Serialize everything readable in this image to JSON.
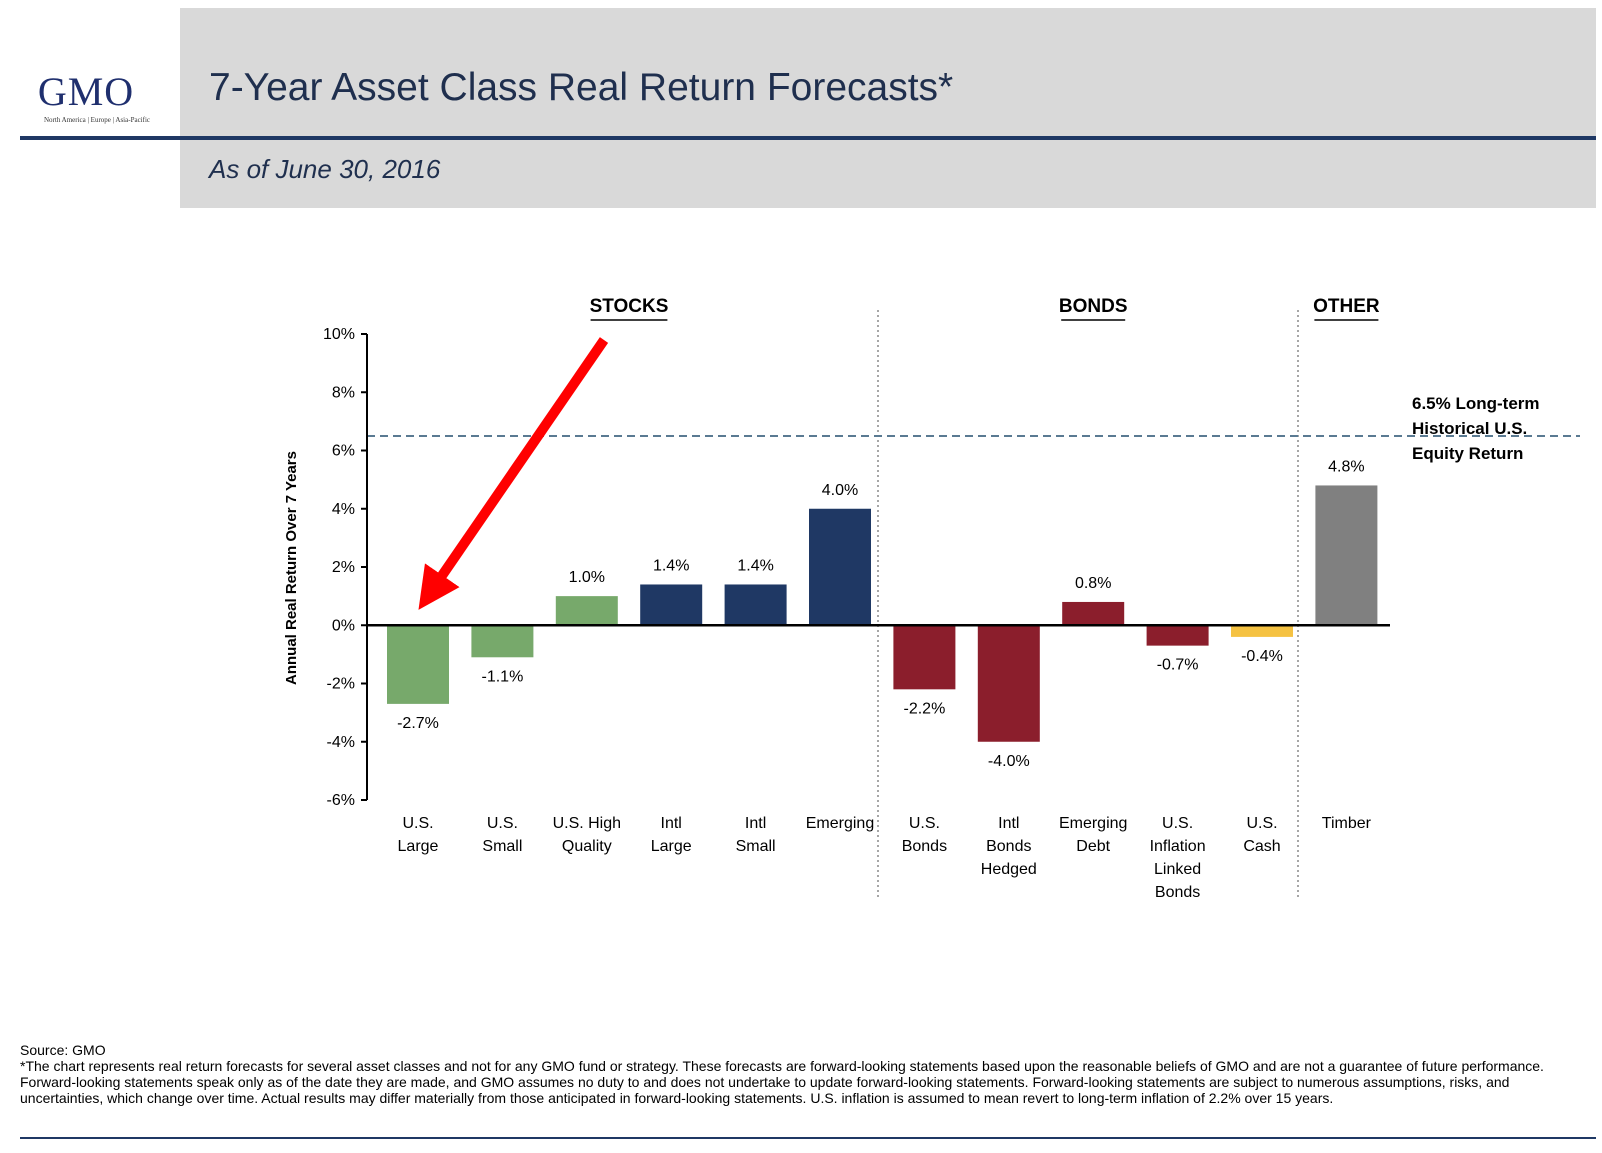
{
  "header": {
    "logo": "GMO",
    "logo_regions": "North America | Europe | Asia-Pacific",
    "title": "7-Year Asset Class Real Return Forecasts*",
    "subtitle": "As of June 30, 2016"
  },
  "colors": {
    "navy": "#1f3864",
    "green": "#77a96b",
    "red": "#8b1e2c",
    "yellow": "#f5c242",
    "gray": "#808080",
    "arrow": "#ff0000"
  },
  "chart_data": {
    "type": "bar",
    "ylabel": "Annual Real Return Over 7 Years",
    "ylim": [
      -6,
      10
    ],
    "yticks": [
      10,
      8,
      6,
      4,
      2,
      0,
      -2,
      -4,
      -6
    ],
    "ytick_labels": [
      "10%",
      "8%",
      "6%",
      "4%",
      "2%",
      "0%",
      "-2%",
      "-4%",
      "-6%"
    ],
    "groups": [
      {
        "label": "STOCKS",
        "from": 0,
        "to": 5
      },
      {
        "label": "BONDS",
        "from": 6,
        "to": 10
      },
      {
        "label": "OTHER",
        "from": 11,
        "to": 11
      }
    ],
    "categories": [
      [
        "U.S.",
        "Large"
      ],
      [
        "U.S.",
        "Small"
      ],
      [
        "U.S. High",
        "Quality"
      ],
      [
        "Intl",
        "Large"
      ],
      [
        "Intl",
        "Small"
      ],
      [
        "Emerging"
      ],
      [
        "U.S.",
        "Bonds"
      ],
      [
        "Intl",
        "Bonds",
        "Hedged"
      ],
      [
        "Emerging",
        "Debt"
      ],
      [
        "U.S.",
        "Inflation",
        "Linked",
        "Bonds"
      ],
      [
        "U.S.",
        "Cash"
      ],
      [
        "Timber"
      ]
    ],
    "values": [
      -2.7,
      -1.1,
      1.0,
      1.4,
      1.4,
      4.0,
      -2.2,
      -4.0,
      0.8,
      -0.7,
      -0.4,
      4.8
    ],
    "value_labels": [
      "-2.7%",
      "-1.1%",
      "1.0%",
      "1.4%",
      "1.4%",
      "4.0%",
      "-2.2%",
      "-4.0%",
      "0.8%",
      "-0.7%",
      "-0.4%",
      "4.8%"
    ],
    "bar_colors": [
      "green",
      "green",
      "green",
      "navy",
      "navy",
      "navy",
      "red",
      "red",
      "red",
      "red",
      "yellow",
      "gray"
    ],
    "reference_line": {
      "value": 6.5,
      "label": [
        "6.5% Long-term",
        "Historical U.S.",
        "Equity Return"
      ]
    },
    "annotation_arrow_target_category": 0
  },
  "footer": {
    "source": "Source: GMO",
    "disclaimer": "*The chart represents real return forecasts for several asset classes and not for any GMO fund or strategy.  These forecasts are forward-looking statements based upon the reasonable beliefs of GMO and are not a guarantee of future performance.  Forward-looking statements speak only as of the date they are made, and GMO assumes no duty to and does not undertake to update forward-looking statements.  Forward-looking statements are subject to numerous assumptions, risks, and uncertainties, which change over time.  Actual results may differ materially from those anticipated in forward-looking statements. U.S. inflation is assumed to mean revert to long-term inflation of 2.2% over 15 years."
  }
}
